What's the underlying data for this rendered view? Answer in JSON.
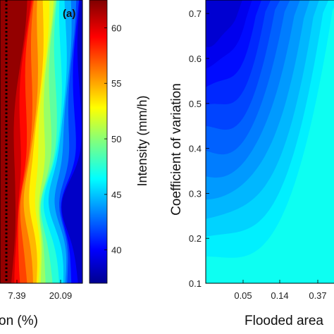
{
  "chart_data": [
    {
      "type": "heatmap",
      "panel_label": "(a)",
      "xlabel_visible_fragment": "on (%)",
      "x_ticks": [
        "7.39",
        "20.09"
      ],
      "colorbar": {
        "label": "Intensity (mm/h)",
        "ticks": [
          40,
          45,
          50,
          55,
          60
        ],
        "range": [
          37,
          62.5
        ],
        "colormap": "jet"
      },
      "reference_line": "dotted vertical line",
      "color_trend": "values decrease from about 62 on the far left to about 40 on the lower right"
    },
    {
      "type": "heatmap",
      "xlabel_visible_fragment": "Flooded area",
      "ylabel": "Coefficient of variation",
      "x_ticks": [
        "0.05",
        "0.14",
        "0.37"
      ],
      "y_ticks": [
        "0.1",
        "0.2",
        "0.3",
        "0.4",
        "0.5",
        "0.6",
        "0.7"
      ],
      "ylim": [
        0.1,
        0.73
      ],
      "colormap": "jet (blue range)",
      "color_trend": "dark blue at top, light cyan at bottom right"
    }
  ]
}
